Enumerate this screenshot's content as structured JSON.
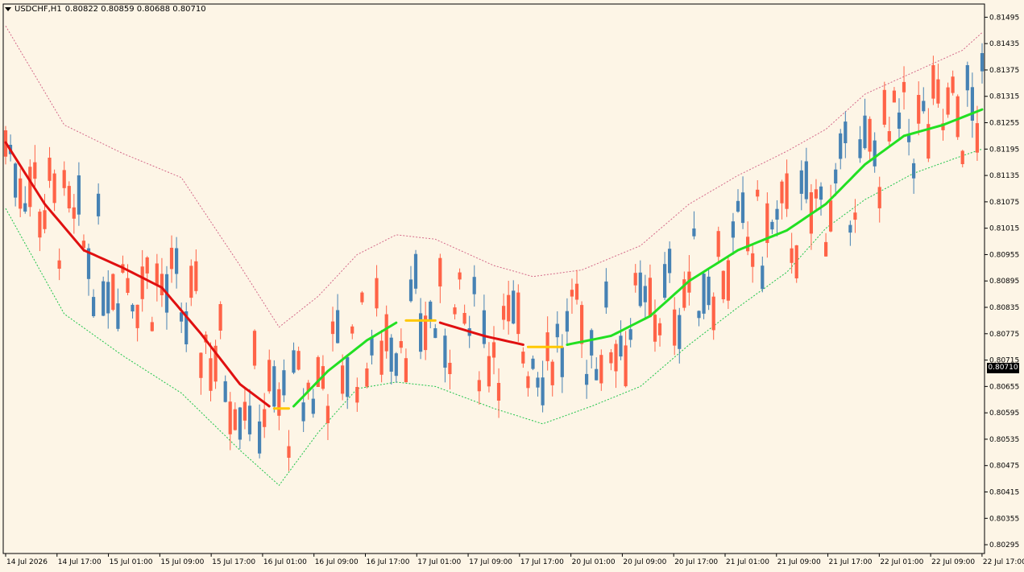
{
  "title": {
    "symbol_label": "USDCHF,H1",
    "ohlc": "0.80822 0.80859 0.80688 0.80710"
  },
  "current_price": "0.80710",
  "colors": {
    "background": "#fdf5e6",
    "bull_candle": "#4682b4",
    "bear_candle": "#ff6347",
    "ma_up": "#22e022",
    "ma_down": "#e01010",
    "ma_flat": "#ffc800",
    "upper_band": "#d46a8a",
    "lower_band": "#1ec44a",
    "axis": "#000000"
  },
  "chart_data": {
    "type": "candlestick",
    "y_axis": {
      "min": 0.80275,
      "max": 0.81525,
      "ticks": [
        "0.81495",
        "0.81435",
        "0.81375",
        "0.81315",
        "0.81255",
        "0.81195",
        "0.81135",
        "0.81075",
        "0.81015",
        "0.80955",
        "0.80895",
        "0.80835",
        "0.80775",
        "0.80715",
        "0.80655",
        "0.80595",
        "0.80535",
        "0.80475",
        "0.80415",
        "0.80355",
        "0.80295"
      ]
    },
    "x_axis": {
      "labels": [
        "14 Jul 2026",
        "14 Jul 17:00",
        "15 Jul 01:00",
        "15 Jul 09:00",
        "15 Jul 17:00",
        "16 Jul 01:00",
        "16 Jul 09:00",
        "16 Jul 17:00",
        "17 Jul 01:00",
        "17 Jul 09:00",
        "17 Jul 17:00",
        "20 Jul 01:00",
        "20 Jul 09:00",
        "20 Jul 17:00",
        "21 Jul 01:00",
        "21 Jul 09:00",
        "21 Jul 17:00",
        "22 Jul 01:00",
        "22 Jul 09:00",
        "22 Jul 17:00"
      ]
    },
    "ma_segments": [
      {
        "trend": "down",
        "points": [
          [
            0,
            0.8121
          ],
          [
            8,
            0.8107
          ],
          [
            16,
            0.80965
          ],
          [
            24,
            0.80925
          ],
          [
            32,
            0.8088
          ],
          [
            40,
            0.80775
          ],
          [
            48,
            0.8066
          ],
          [
            54,
            0.8061
          ]
        ]
      },
      {
        "trend": "flat",
        "points": [
          [
            55,
            0.80605
          ],
          [
            58,
            0.80605
          ]
        ]
      },
      {
        "trend": "up",
        "points": [
          [
            59,
            0.8061
          ],
          [
            66,
            0.8069
          ],
          [
            74,
            0.8076
          ],
          [
            80,
            0.808
          ]
        ]
      },
      {
        "trend": "flat",
        "points": [
          [
            82,
            0.80805
          ],
          [
            88,
            0.80805
          ]
        ]
      },
      {
        "trend": "down",
        "points": [
          [
            89,
            0.808
          ],
          [
            98,
            0.8077
          ],
          [
            106,
            0.8075
          ]
        ]
      },
      {
        "trend": "flat",
        "points": [
          [
            107,
            0.80745
          ],
          [
            114,
            0.80745
          ]
        ]
      },
      {
        "trend": "up",
        "points": [
          [
            115,
            0.8075
          ],
          [
            124,
            0.8077
          ],
          [
            132,
            0.80815
          ],
          [
            140,
            0.80895
          ],
          [
            150,
            0.80965
          ],
          [
            160,
            0.8101
          ],
          [
            168,
            0.8107
          ],
          [
            176,
            0.8116
          ],
          [
            184,
            0.81225
          ],
          [
            192,
            0.8125
          ],
          [
            200,
            0.81285
          ]
        ]
      }
    ],
    "upper_band": [
      [
        0,
        0.81475
      ],
      [
        12,
        0.8125
      ],
      [
        24,
        0.81185
      ],
      [
        36,
        0.8113
      ],
      [
        48,
        0.8093
      ],
      [
        56,
        0.8079
      ],
      [
        64,
        0.8086
      ],
      [
        72,
        0.80955
      ],
      [
        80,
        0.81
      ],
      [
        88,
        0.8099
      ],
      [
        100,
        0.8093
      ],
      [
        108,
        0.80905
      ],
      [
        118,
        0.8092
      ],
      [
        130,
        0.80975
      ],
      [
        140,
        0.8107
      ],
      [
        150,
        0.81135
      ],
      [
        160,
        0.8119
      ],
      [
        168,
        0.8124
      ],
      [
        176,
        0.8132
      ],
      [
        186,
        0.8137
      ],
      [
        196,
        0.8142
      ],
      [
        200,
        0.8146
      ]
    ],
    "lower_band": [
      [
        0,
        0.8106
      ],
      [
        12,
        0.8082
      ],
      [
        24,
        0.80725
      ],
      [
        36,
        0.8064
      ],
      [
        48,
        0.8051
      ],
      [
        56,
        0.8043
      ],
      [
        64,
        0.8055
      ],
      [
        72,
        0.8065
      ],
      [
        80,
        0.80665
      ],
      [
        88,
        0.80655
      ],
      [
        100,
        0.80605
      ],
      [
        110,
        0.8057
      ],
      [
        120,
        0.8061
      ],
      [
        130,
        0.80655
      ],
      [
        140,
        0.8075
      ],
      [
        150,
        0.80835
      ],
      [
        160,
        0.80915
      ],
      [
        168,
        0.81015
      ],
      [
        176,
        0.8108
      ],
      [
        186,
        0.8114
      ],
      [
        196,
        0.8118
      ],
      [
        200,
        0.81195
      ]
    ]
  }
}
